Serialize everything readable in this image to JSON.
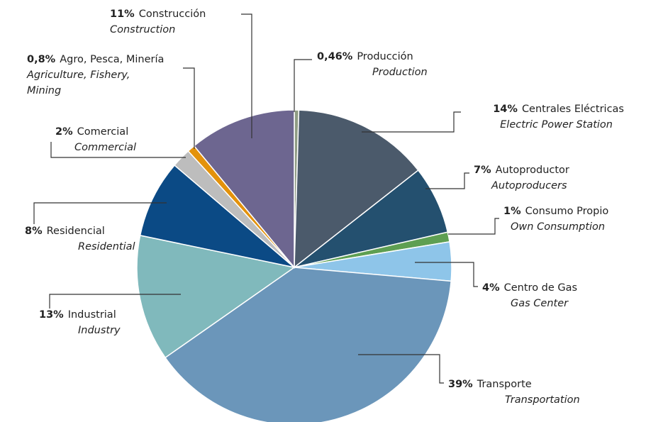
{
  "chart_data": {
    "type": "pie",
    "categories": [
      "Producción",
      "Centrales Eléctricas",
      "Autoproductor",
      "Consumo Propio",
      "Centro de Gas",
      "Transporte",
      "Industrial",
      "Residencial",
      "Comercial",
      "Agro, Pesca, Minería",
      "Construcción"
    ],
    "categories_en": [
      [
        "Production"
      ],
      [
        "Electric Power Station"
      ],
      [
        "Autoproducers"
      ],
      [
        "Own Consumption"
      ],
      [
        "Gas Center"
      ],
      [
        "Transportation"
      ],
      [
        "Industry"
      ],
      [
        "Residential"
      ],
      [
        "Commercial"
      ],
      [
        "Agriculture, Fishery,",
        "Mining"
      ],
      [
        "Construction"
      ]
    ],
    "values": [
      0.46,
      14,
      7,
      1,
      4,
      39,
      13,
      8,
      2,
      0.8,
      11
    ],
    "value_labels": [
      "0,46%",
      "14%",
      "7%",
      "1%",
      "4%",
      "39%",
      "13%",
      "8%",
      "2%",
      "0,8%",
      "11%"
    ],
    "colors": [
      "#8f9c84",
      "#4b5a6b",
      "#24506f",
      "#5e9f52",
      "#8ec5e9",
      "#6b96ba",
      "#80b9bc",
      "#0b4a85",
      "#bdbdbd",
      "#e3920c",
      "#6d6690"
    ]
  }
}
